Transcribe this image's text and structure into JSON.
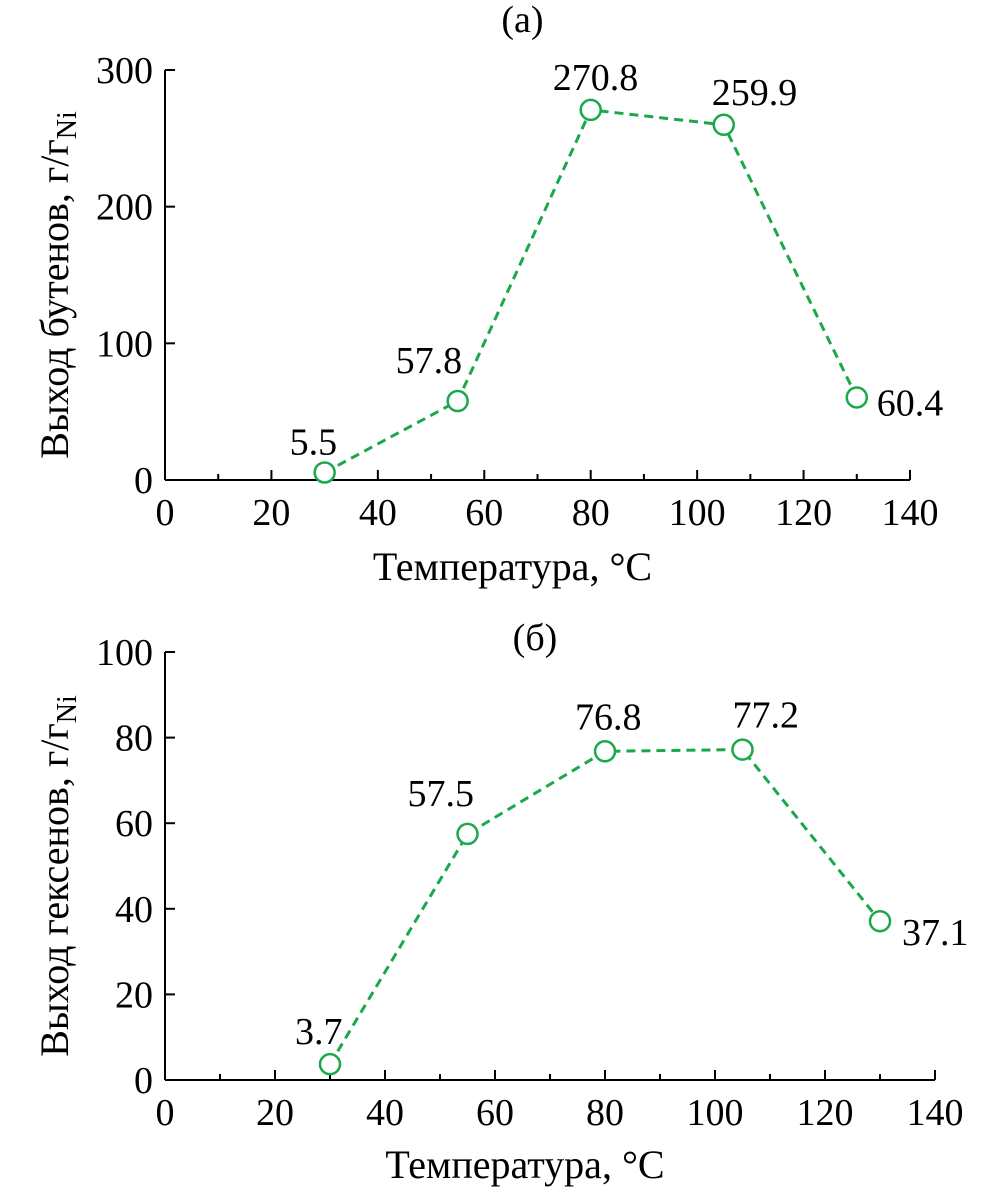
{
  "chart_data": [
    {
      "type": "line",
      "title": "(a)",
      "xlabel": "Температура, °C",
      "ylabel_main": "Выход бутенов, г/г",
      "ylabel_sub": "Ni",
      "xlim": [
        0,
        140
      ],
      "ylim": [
        0,
        300
      ],
      "xticks": [
        0,
        20,
        40,
        60,
        80,
        100,
        120,
        140
      ],
      "yticks": [
        0,
        100,
        200,
        300
      ],
      "x": [
        30,
        55,
        80,
        105,
        130
      ],
      "values": [
        5.5,
        57.8,
        270.8,
        259.9,
        60.4
      ],
      "labels": [
        "5.5",
        "57.8",
        "270.8",
        "259.9",
        "60.4"
      ],
      "color": "#1aa84a",
      "grid": false
    },
    {
      "type": "line",
      "title": "(б)",
      "xlabel": "Температура, °C",
      "ylabel_main": "Выход гексенов, г/г",
      "ylabel_sub": "Ni",
      "xlim": [
        0,
        140
      ],
      "ylim": [
        0,
        100
      ],
      "xticks": [
        0,
        20,
        40,
        60,
        80,
        100,
        120,
        140
      ],
      "yticks": [
        0,
        20,
        40,
        60,
        80,
        100
      ],
      "x": [
        30,
        55,
        80,
        105,
        130
      ],
      "values": [
        3.7,
        57.5,
        76.8,
        77.2,
        37.1
      ],
      "labels": [
        "3.7",
        "57.5",
        "76.8",
        "77.2",
        "37.1"
      ],
      "color": "#1aa84a",
      "grid": false
    }
  ]
}
